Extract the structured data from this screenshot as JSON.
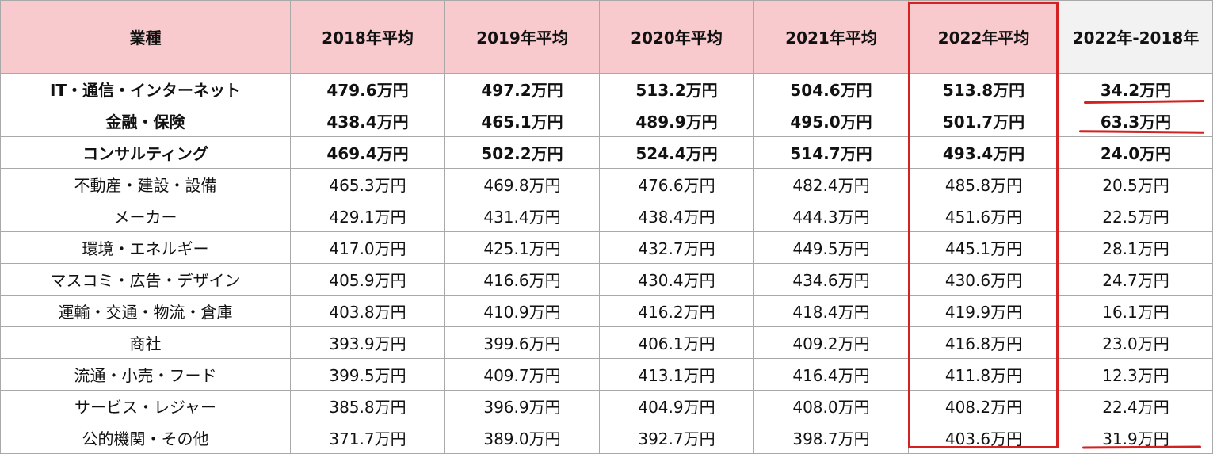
{
  "header": {
    "industry": "業種",
    "y2018": "2018年平均",
    "y2019": "2019年平均",
    "y2020": "2020年平均",
    "y2021": "2021年平均",
    "y2022": "2022年平均",
    "diff": "2022年-2018年"
  },
  "rows": [
    {
      "industry": "IT・通信・インターネット",
      "y2018": "479.6万円",
      "y2019": "497.2万円",
      "y2020": "513.2万円",
      "y2021": "504.6万円",
      "y2022": "513.8万円",
      "diff": "34.2万円"
    },
    {
      "industry": "金融・保険",
      "y2018": "438.4万円",
      "y2019": "465.1万円",
      "y2020": "489.9万円",
      "y2021": "495.0万円",
      "y2022": "501.7万円",
      "diff": "63.3万円"
    },
    {
      "industry": "コンサルティング",
      "y2018": "469.4万円",
      "y2019": "502.2万円",
      "y2020": "524.4万円",
      "y2021": "514.7万円",
      "y2022": "493.4万円",
      "diff": "24.0万円"
    },
    {
      "industry": "不動産・建設・設備",
      "y2018": "465.3万円",
      "y2019": "469.8万円",
      "y2020": "476.6万円",
      "y2021": "482.4万円",
      "y2022": "485.8万円",
      "diff": "20.5万円"
    },
    {
      "industry": "メーカー",
      "y2018": "429.1万円",
      "y2019": "431.4万円",
      "y2020": "438.4万円",
      "y2021": "444.3万円",
      "y2022": "451.6万円",
      "diff": "22.5万円"
    },
    {
      "industry": "環境・エネルギー",
      "y2018": "417.0万円",
      "y2019": "425.1万円",
      "y2020": "432.7万円",
      "y2021": "449.5万円",
      "y2022": "445.1万円",
      "diff": "28.1万円"
    },
    {
      "industry": "マスコミ・広告・デザイン",
      "y2018": "405.9万円",
      "y2019": "416.6万円",
      "y2020": "430.4万円",
      "y2021": "434.6万円",
      "y2022": "430.6万円",
      "diff": "24.7万円"
    },
    {
      "industry": "運輸・交通・物流・倉庫",
      "y2018": "403.8万円",
      "y2019": "410.9万円",
      "y2020": "416.2万円",
      "y2021": "418.4万円",
      "y2022": "419.9万円",
      "diff": "16.1万円"
    },
    {
      "industry": "商社",
      "y2018": "393.9万円",
      "y2019": "399.6万円",
      "y2020": "406.1万円",
      "y2021": "409.2万円",
      "y2022": "416.8万円",
      "diff": "23.0万円"
    },
    {
      "industry": "流通・小売・フード",
      "y2018": "399.5万円",
      "y2019": "409.7万円",
      "y2020": "413.1万円",
      "y2021": "416.4万円",
      "y2022": "411.8万円",
      "diff": "12.3万円"
    },
    {
      "industry": "サービス・レジャー",
      "y2018": "385.8万円",
      "y2019": "396.9万円",
      "y2020": "404.9万円",
      "y2021": "408.0万円",
      "y2022": "408.2万円",
      "diff": "22.4万円"
    },
    {
      "industry": "公的機関・その他",
      "y2018": "371.7万円",
      "y2019": "389.0万円",
      "y2020": "392.7万円",
      "y2021": "398.7万円",
      "y2022": "403.6万円",
      "diff": "31.9万円"
    }
  ],
  "colors": {
    "header_fill": "#f8c9cd",
    "diff_header_fill": "#f2f2f2",
    "highlight": "#d42222"
  }
}
